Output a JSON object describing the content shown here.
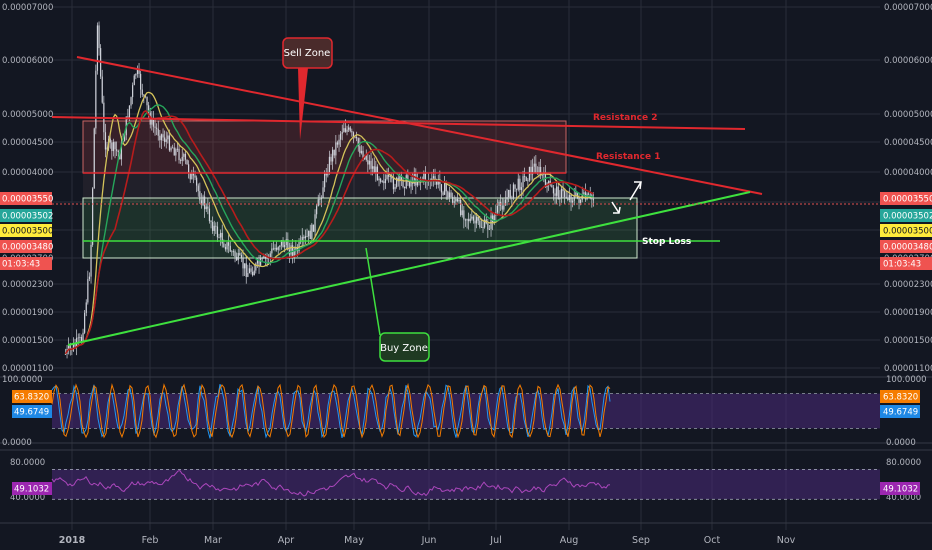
{
  "colors": {
    "background": "#131722",
    "grid": "#2a2e39",
    "axis_text": "#b2b5be",
    "candle": "#d1d4dc",
    "ma_fast": "#d4c35a",
    "ma_green": "#26a65b",
    "ma_red": "#b71c1c",
    "trend_red": "#e0282e",
    "trend_green": "#3ee03e",
    "stoch_k": "#2196f3",
    "stoch_d": "#f57c00",
    "rsi": "#ab47bc",
    "band_fill": "#4a2a7a",
    "label_red": "#ef5350",
    "label_green": "#26a69a",
    "label_yellow": "#ffeb3b",
    "label_blue": "#1e88e5",
    "label_orange": "#f57c00",
    "label_purple": "#9c27b0"
  },
  "price_axis": {
    "ticks": [
      "0.00007000",
      "0.00006000",
      "0.00005000",
      "0.00004500",
      "0.00004000",
      "0.00002700",
      "0.00002300",
      "0.00001900",
      "0.00001500",
      "0.00001100"
    ],
    "labels": [
      {
        "text": "0.00003550",
        "color": "label_red"
      },
      {
        "text": "0.00003502",
        "color": "label_green"
      },
      {
        "text": "0.00003500",
        "color": "label_yellow"
      },
      {
        "text": "0.00003480",
        "color": "label_red"
      },
      {
        "text": "01:03:43",
        "color": "label_red"
      }
    ]
  },
  "stoch_axis": {
    "ticks": [
      "100.0000",
      "0.0000"
    ],
    "labels": [
      {
        "text": "63.8320",
        "color": "label_orange"
      },
      {
        "text": "49.6749",
        "color": "label_blue"
      }
    ]
  },
  "rsi_axis": {
    "ticks": [
      "80.0000",
      "40.0000"
    ],
    "labels": [
      {
        "text": "49.1032",
        "color": "label_purple"
      }
    ]
  },
  "time_axis": [
    "2018",
    "Feb",
    "Mar",
    "Apr",
    "May",
    "Jun",
    "Jul",
    "Aug",
    "Sep",
    "Oct",
    "Nov"
  ],
  "annotations": {
    "sell_zone": "Sell Zone",
    "buy_zone": "Buy Zone",
    "resistance_1": "Resistance 1",
    "resistance_2": "Resistance 2",
    "stop_loss": "Stop Loss"
  },
  "chart_data": {
    "type": "candlestick",
    "title": "",
    "x": [
      "2018",
      "Feb",
      "Mar",
      "Apr",
      "May",
      "Jun",
      "Jul",
      "Aug",
      "Sep",
      "Oct",
      "Nov"
    ],
    "price_keypoints": [
      [
        "2017-12-29",
        1.3e-05
      ],
      [
        "2018-01-05",
        1.5e-05
      ],
      [
        "2018-01-09",
        2.9e-05
      ],
      [
        "2018-01-12",
        6.8e-05
      ],
      [
        "2018-01-15",
        4.5e-05
      ],
      [
        "2018-01-22",
        4.3e-05
      ],
      [
        "2018-01-29",
        5.8e-05
      ],
      [
        "2018-02-05",
        4.8e-05
      ],
      [
        "2018-02-12",
        4.5e-05
      ],
      [
        "2018-02-19",
        4.2e-05
      ],
      [
        "2018-02-25",
        3.7e-05
      ],
      [
        "2018-03-05",
        3.2e-05
      ],
      [
        "2018-03-12",
        3e-05
      ],
      [
        "2018-03-19",
        2.8e-05
      ],
      [
        "2018-03-26",
        2.9e-05
      ],
      [
        "2018-04-02",
        3.1e-05
      ],
      [
        "2018-04-09",
        3e-05
      ],
      [
        "2018-04-16",
        3.2e-05
      ],
      [
        "2018-04-23",
        4.1e-05
      ],
      [
        "2018-04-30",
        4.8e-05
      ],
      [
        "2018-05-07",
        4.4e-05
      ],
      [
        "2018-05-14",
        4e-05
      ],
      [
        "2018-05-21",
        3.8e-05
      ],
      [
        "2018-05-28",
        3.85e-05
      ],
      [
        "2018-06-04",
        3.9e-05
      ],
      [
        "2018-06-11",
        3.8e-05
      ],
      [
        "2018-06-18",
        3.5e-05
      ],
      [
        "2018-06-25",
        3.3e-05
      ],
      [
        "2018-07-02",
        3.25e-05
      ],
      [
        "2018-07-09",
        3.5e-05
      ],
      [
        "2018-07-16",
        3.8e-05
      ],
      [
        "2018-07-23",
        4.1e-05
      ],
      [
        "2018-07-30",
        3.7e-05
      ],
      [
        "2018-08-06",
        3.6e-05
      ],
      [
        "2018-08-13",
        3.55e-05
      ],
      [
        "2018-08-18",
        3.55e-05
      ]
    ],
    "levels": {
      "resistance_2": 4.85e-05,
      "resistance_1": 4.05e-05,
      "current": 3.55e-05,
      "stop_loss": 3.1e-05
    },
    "stoch_bands": [
      20,
      80
    ],
    "rsi_bands": [
      70,
      30
    ]
  }
}
